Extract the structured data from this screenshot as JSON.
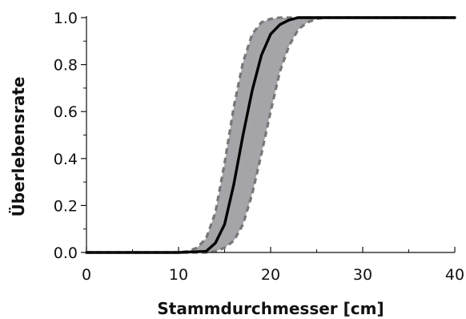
{
  "chart_data": {
    "type": "line",
    "title": "",
    "xlabel": "Stammdurchmesser [cm]",
    "ylabel": "Überlebensrate",
    "xlim": [
      0,
      40
    ],
    "ylim": [
      0,
      1
    ],
    "xticks": [
      0,
      10,
      20,
      30,
      40
    ],
    "xtick_labels": [
      "0",
      "10",
      "20",
      "30",
      "40"
    ],
    "yticks": [
      0,
      0.2,
      0.4,
      0.6,
      0.8,
      1.0
    ],
    "ytick_labels": [
      "0.0",
      "0.2",
      "0.4",
      "0.6",
      "0.8",
      "1.0"
    ],
    "grid": false,
    "legend": "none",
    "series": [
      {
        "role": "mean",
        "style": "solid",
        "color": "#000000",
        "x": [
          0,
          10,
          13,
          14,
          15,
          16,
          17,
          18,
          19,
          20,
          21,
          22,
          23,
          24,
          25,
          30,
          40
        ],
        "y": [
          0.0,
          0.0,
          0.005,
          0.04,
          0.12,
          0.29,
          0.5,
          0.69,
          0.84,
          0.93,
          0.97,
          0.99,
          1.0,
          1.0,
          1.0,
          1.0,
          1.0
        ]
      },
      {
        "role": "upper-bound",
        "style": "dashed",
        "color": "#777777",
        "x": [
          0,
          10,
          11,
          12,
          13,
          14,
          15,
          16,
          17,
          18,
          19,
          20,
          21,
          22,
          23,
          25,
          30,
          40
        ],
        "y": [
          0.0,
          0.0,
          0.005,
          0.02,
          0.06,
          0.17,
          0.38,
          0.62,
          0.81,
          0.93,
          0.98,
          0.995,
          1.0,
          1.0,
          1.0,
          1.0,
          1.0,
          1.0
        ]
      },
      {
        "role": "lower-bound",
        "style": "dashed",
        "color": "#777777",
        "x": [
          0,
          10,
          13,
          14,
          15,
          16,
          17,
          18,
          19,
          20,
          21,
          22,
          23,
          24,
          25,
          26,
          30,
          40
        ],
        "y": [
          0.0,
          0.0,
          0.0,
          0.005,
          0.02,
          0.05,
          0.12,
          0.25,
          0.42,
          0.6,
          0.77,
          0.88,
          0.95,
          0.98,
          0.995,
          1.0,
          1.0,
          1.0
        ]
      }
    ],
    "band": {
      "fill": "#a5a5a9",
      "between": [
        "lower-bound",
        "upper-bound"
      ]
    }
  }
}
